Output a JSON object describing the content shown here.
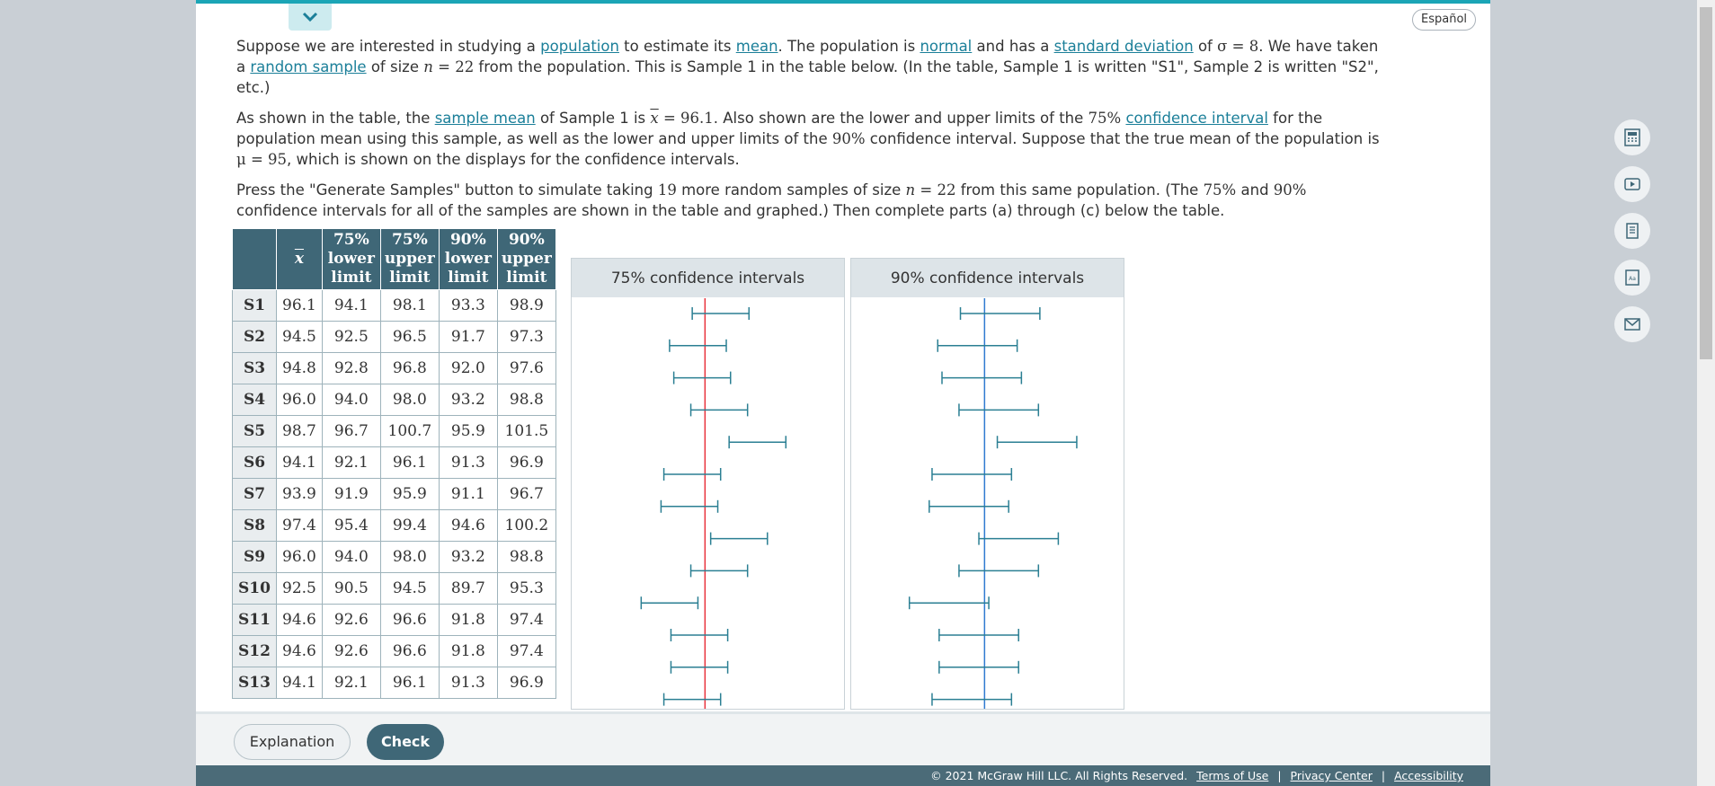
{
  "header": {
    "language_button": "Español"
  },
  "intro": {
    "p1": {
      "t1": "Suppose we are interested in studying a ",
      "link_population": "population",
      "t2": " to estimate its ",
      "link_mean": "mean",
      "t3": ". The population is ",
      "link_normal": "normal",
      "t4": " and has a ",
      "link_sd": "standard deviation",
      "t5": " of ",
      "m_sigma": "σ = 8",
      "t6": ". We have taken a ",
      "link_random_sample": "random sample",
      "t7": " of size ",
      "m_n": "n",
      "m_n_val": " = 22",
      "t8": " from the population. This is Sample 1 in the table below. (In the table, Sample 1 is written \"S1\", Sample 2 is written \"S2\", etc.)"
    },
    "p2": {
      "t1": "As shown in the table, the ",
      "link_sample_mean": "sample mean",
      "t2": " of Sample 1 is ",
      "m_xbar": "x",
      "m_xbar_val": " = 96.1",
      "t3": ". Also shown are the lower and upper limits of the ",
      "m_75": "75%",
      "t4": " ",
      "link_ci": "confidence interval",
      "t5": " for the population mean using this sample, as well as the lower and upper limits of the ",
      "m_90": "90%",
      "t6": " confidence interval. Suppose that the true mean of the population is ",
      "m_mu": "μ = 95",
      "t7": ", which is shown on the displays for the confidence intervals."
    },
    "p3": {
      "t1": "Press the \"Generate Samples\" button to simulate taking ",
      "m_19": "19",
      "t2": " more random samples of size ",
      "m_n": "n",
      "m_n_val": " = 22",
      "t3": " from this same population. (The ",
      "m_75": "75%",
      "t4": " and ",
      "m_90": "90%",
      "t5": " confidence intervals for all of the samples are shown in the table and graphed.) Then complete parts (a) through (c) below the table."
    }
  },
  "table": {
    "headers": [
      "",
      "x",
      "75%\nlower\nlimit",
      "75%\nupper\nlimit",
      "90%\nlower\nlimit",
      "90%\nupper\nlimit"
    ],
    "rows": [
      [
        "S1",
        "96.1",
        "94.1",
        "98.1",
        "93.3",
        "98.9"
      ],
      [
        "S2",
        "94.5",
        "92.5",
        "96.5",
        "91.7",
        "97.3"
      ],
      [
        "S3",
        "94.8",
        "92.8",
        "96.8",
        "92.0",
        "97.6"
      ],
      [
        "S4",
        "96.0",
        "94.0",
        "98.0",
        "93.2",
        "98.8"
      ],
      [
        "S5",
        "98.7",
        "96.7",
        "100.7",
        "95.9",
        "101.5"
      ],
      [
        "S6",
        "94.1",
        "92.1",
        "96.1",
        "91.3",
        "96.9"
      ],
      [
        "S7",
        "93.9",
        "91.9",
        "95.9",
        "91.1",
        "96.7"
      ],
      [
        "S8",
        "97.4",
        "95.4",
        "99.4",
        "94.6",
        "100.2"
      ],
      [
        "S9",
        "96.0",
        "94.0",
        "98.0",
        "93.2",
        "98.8"
      ],
      [
        "S10",
        "92.5",
        "90.5",
        "94.5",
        "89.7",
        "95.3"
      ],
      [
        "S11",
        "94.6",
        "92.6",
        "96.6",
        "91.8",
        "97.4"
      ],
      [
        "S12",
        "94.6",
        "92.6",
        "96.6",
        "91.8",
        "97.4"
      ],
      [
        "S13",
        "94.1",
        "92.1",
        "96.1",
        "91.3",
        "96.9"
      ]
    ]
  },
  "chart_data": [
    {
      "type": "interval",
      "title": "75% confidence intervals",
      "reference_line": 95,
      "reference_color": "#e8323c",
      "interval_color": "#2b7f93",
      "xlim": [
        85.6,
        104.8
      ],
      "intervals": [
        [
          94.1,
          98.1
        ],
        [
          92.5,
          96.5
        ],
        [
          92.8,
          96.8
        ],
        [
          94.0,
          98.0
        ],
        [
          96.7,
          100.7
        ],
        [
          92.1,
          96.1
        ],
        [
          91.9,
          95.9
        ],
        [
          95.4,
          99.4
        ],
        [
          94.0,
          98.0
        ],
        [
          90.5,
          94.5
        ],
        [
          92.6,
          96.6
        ],
        [
          92.6,
          96.6
        ],
        [
          92.1,
          96.1
        ]
      ]
    },
    {
      "type": "interval",
      "title": "90% confidence intervals",
      "reference_line": 95,
      "reference_color": "#2f7ad0",
      "interval_color": "#2b7f93",
      "xlim": [
        85.6,
        104.8
      ],
      "intervals": [
        [
          93.3,
          98.9
        ],
        [
          91.7,
          97.3
        ],
        [
          92.0,
          97.6
        ],
        [
          93.2,
          98.8
        ],
        [
          95.9,
          101.5
        ],
        [
          91.3,
          96.9
        ],
        [
          91.1,
          96.7
        ],
        [
          94.6,
          100.2
        ],
        [
          93.2,
          98.8
        ],
        [
          89.7,
          95.3
        ],
        [
          91.8,
          97.4
        ],
        [
          91.8,
          97.4
        ],
        [
          91.3,
          96.9
        ]
      ]
    }
  ],
  "footer": {
    "explanation_button": "Explanation",
    "check_button": "Check"
  },
  "bottombar": {
    "copyright": "© 2021 McGraw Hill LLC. All Rights Reserved.",
    "terms": "Terms of Use",
    "privacy": "Privacy Center",
    "accessibility": "Accessibility",
    "separator": "|"
  },
  "side_tools": [
    "calculator-icon",
    "video-icon",
    "ebook-icon",
    "glossary-icon",
    "email-icon"
  ]
}
